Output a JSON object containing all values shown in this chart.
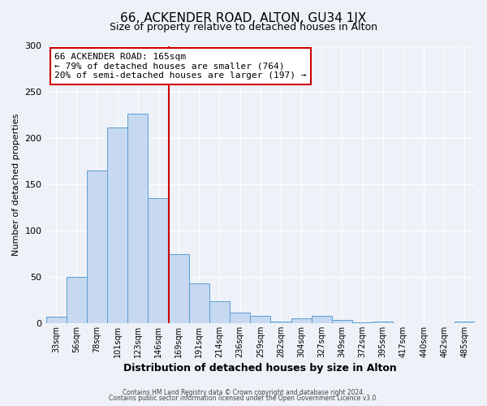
{
  "title": "66, ACKENDER ROAD, ALTON, GU34 1JX",
  "subtitle": "Size of property relative to detached houses in Alton",
  "xlabel": "Distribution of detached houses by size in Alton",
  "ylabel": "Number of detached properties",
  "bar_labels": [
    "33sqm",
    "56sqm",
    "78sqm",
    "101sqm",
    "123sqm",
    "146sqm",
    "169sqm",
    "191sqm",
    "214sqm",
    "236sqm",
    "259sqm",
    "282sqm",
    "304sqm",
    "327sqm",
    "349sqm",
    "372sqm",
    "395sqm",
    "417sqm",
    "440sqm",
    "462sqm",
    "485sqm"
  ],
  "bar_values": [
    7,
    50,
    165,
    212,
    227,
    135,
    75,
    43,
    24,
    11,
    8,
    2,
    5,
    8,
    3,
    1,
    2,
    0,
    0,
    0,
    2
  ],
  "bar_color": "#c6d9f0",
  "bar_edge_color": "#5b9bd5",
  "vline_x_idx": 6,
  "vline_color": "#cc0000",
  "annotation_title": "66 ACKENDER ROAD: 165sqm",
  "annotation_line1": "← 79% of detached houses are smaller (764)",
  "annotation_line2": "20% of semi-detached houses are larger (197) →",
  "annotation_box_color": "#ffffff",
  "annotation_border_color": "#cc0000",
  "ylim": [
    0,
    300
  ],
  "yticks": [
    0,
    50,
    100,
    150,
    200,
    250,
    300
  ],
  "footer1": "Contains HM Land Registry data © Crown copyright and database right 2024.",
  "footer2": "Contains public sector information licensed under the Open Government Licence v3.0.",
  "bg_color": "#eef2f8",
  "plot_bg_color": "#eef2f8"
}
